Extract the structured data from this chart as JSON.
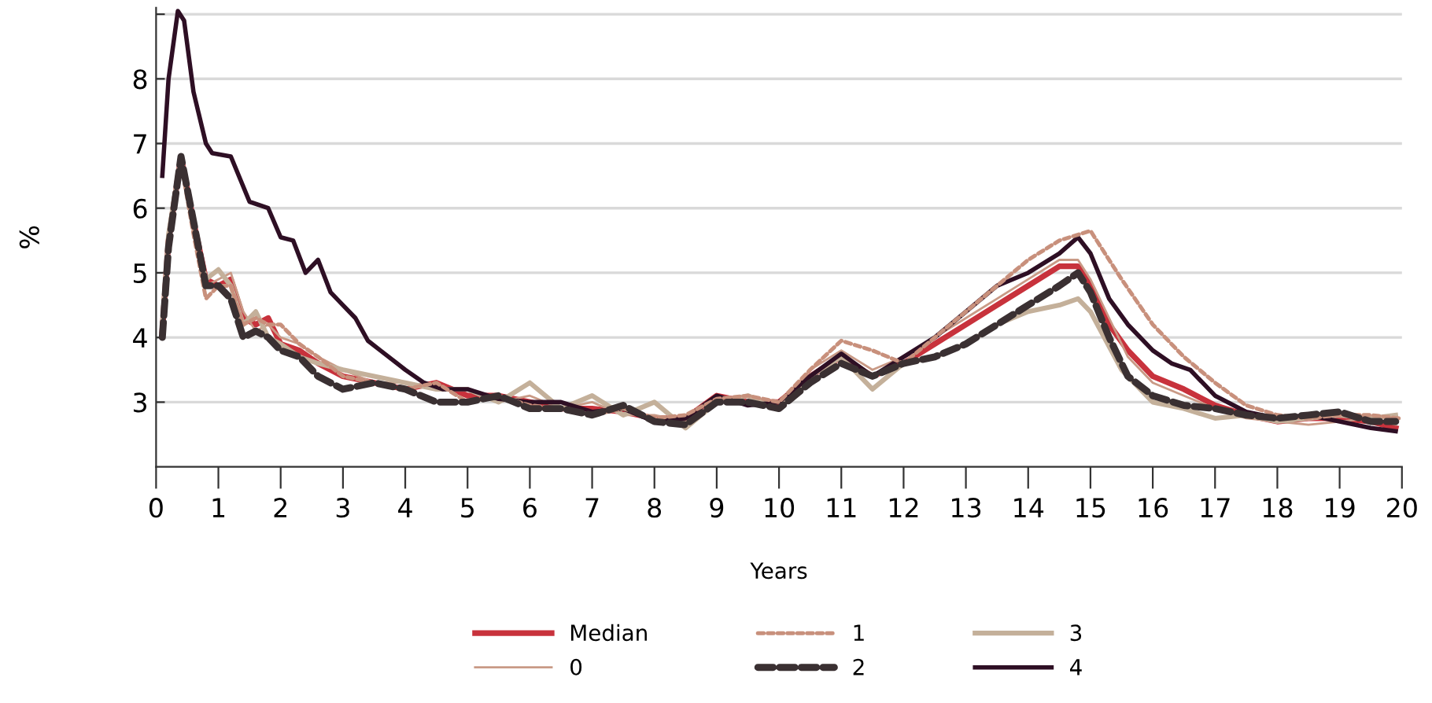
{
  "chart_data": {
    "type": "line",
    "xlabel": "Years",
    "ylabel": "%",
    "xlim": [
      0,
      20
    ],
    "xticks": [
      0,
      1,
      2,
      3,
      4,
      5,
      6,
      7,
      8,
      9,
      10,
      11,
      12,
      13,
      14,
      15,
      16,
      17,
      18,
      19,
      20
    ],
    "ylim": [
      2,
      9.1
    ],
    "yticks": [
      3,
      4,
      5,
      6,
      7,
      8,
      {
        "value": 9,
        "label": null
      }
    ],
    "grid": "y",
    "legend": "bottom",
    "marker": "none",
    "series": [
      {
        "name": "Median",
        "color": "#c8323c",
        "line_style": "solid",
        "x": [
          0.1,
          0.2,
          0.4,
          0.6,
          0.8,
          1.0,
          1.2,
          1.4,
          1.6,
          1.8,
          2.0,
          2.3,
          2.6,
          3,
          3.5,
          4,
          4.5,
          5,
          5.5,
          6,
          6.5,
          7,
          7.5,
          8,
          8.5,
          9,
          9.5,
          10,
          10.5,
          11,
          11.5,
          12,
          12.5,
          13,
          13.5,
          14,
          14.5,
          14.8,
          15,
          15.3,
          15.6,
          16,
          16.5,
          17,
          17.5,
          18,
          18.5,
          19,
          19.5,
          19.9
        ],
        "values": [
          4.1,
          5.5,
          6.8,
          5.8,
          4.9,
          4.8,
          4.9,
          4.3,
          4.2,
          4.3,
          3.9,
          3.8,
          3.6,
          3.4,
          3.3,
          3.2,
          3.3,
          3.1,
          3.1,
          3.0,
          2.9,
          2.9,
          2.85,
          2.75,
          2.75,
          3.1,
          3.0,
          3.0,
          3.4,
          3.7,
          3.4,
          3.6,
          3.9,
          4.2,
          4.5,
          4.8,
          5.1,
          5.1,
          4.8,
          4.2,
          3.8,
          3.4,
          3.2,
          2.95,
          2.8,
          2.7,
          2.75,
          2.75,
          2.7,
          2.6
        ]
      },
      {
        "name": "0",
        "color": "#c99a86",
        "line_style": "solid",
        "x": [
          0.1,
          0.2,
          0.4,
          0.6,
          0.8,
          1.0,
          1.2,
          1.4,
          1.6,
          1.8,
          2.0,
          2.3,
          2.6,
          3,
          3.5,
          4,
          4.5,
          5,
          5.5,
          6,
          6.5,
          7,
          7.5,
          8,
          8.5,
          9,
          9.5,
          10,
          10.5,
          11,
          11.5,
          12,
          12.5,
          13,
          13.5,
          14,
          14.5,
          14.8,
          15,
          15.3,
          15.6,
          16,
          16.5,
          17,
          17.5,
          18,
          18.5,
          19,
          19.5,
          19.9
        ],
        "values": [
          4.1,
          5.4,
          6.7,
          5.7,
          4.8,
          4.9,
          5.0,
          4.4,
          4.1,
          4.2,
          4.0,
          3.9,
          3.7,
          3.5,
          3.3,
          3.3,
          3.2,
          3.2,
          3.0,
          3.1,
          2.9,
          3.0,
          2.8,
          2.8,
          2.7,
          3.0,
          3.1,
          2.9,
          3.5,
          3.8,
          3.5,
          3.7,
          4.0,
          4.3,
          4.6,
          4.9,
          5.2,
          5.2,
          4.9,
          4.3,
          3.7,
          3.3,
          3.1,
          2.9,
          2.75,
          2.7,
          2.65,
          2.7,
          2.75,
          2.65
        ]
      },
      {
        "name": "1",
        "color": "#c8907c",
        "line_style": "dotted",
        "x": [
          0.1,
          0.2,
          0.4,
          0.6,
          0.8,
          1.0,
          1.2,
          1.4,
          1.6,
          1.8,
          2.0,
          2.3,
          2.6,
          3,
          3.5,
          4,
          4.5,
          5,
          5.5,
          6,
          6.5,
          7,
          7.5,
          8,
          8.5,
          9,
          9.5,
          10,
          10.5,
          11,
          11.5,
          12,
          12.5,
          13,
          13.5,
          14,
          14.5,
          15,
          15.5,
          16,
          16.5,
          17,
          17.5,
          18,
          18.5,
          19,
          19.5,
          19.95
        ],
        "values": [
          4.0,
          5.5,
          6.7,
          5.6,
          4.6,
          4.8,
          4.8,
          4.2,
          4.3,
          4.2,
          4.2,
          3.9,
          3.7,
          3.4,
          3.3,
          3.2,
          3.3,
          3.0,
          3.1,
          2.95,
          2.9,
          2.8,
          2.9,
          2.75,
          2.8,
          3.05,
          3.1,
          3.0,
          3.5,
          3.95,
          3.8,
          3.6,
          4.0,
          4.4,
          4.8,
          5.2,
          5.5,
          5.65,
          4.9,
          4.2,
          3.7,
          3.3,
          2.95,
          2.8,
          2.75,
          2.8,
          2.8,
          2.75
        ]
      },
      {
        "name": "2",
        "color": "#3a3032",
        "line_style": "dashed",
        "x": [
          0.1,
          0.2,
          0.4,
          0.6,
          0.8,
          1.0,
          1.2,
          1.4,
          1.6,
          1.8,
          2.0,
          2.3,
          2.6,
          3,
          3.5,
          4,
          4.5,
          5,
          5.5,
          6,
          6.5,
          7,
          7.5,
          8,
          8.5,
          9,
          9.5,
          10,
          10.5,
          11,
          11.5,
          12,
          12.5,
          13,
          13.5,
          14,
          14.5,
          14.8,
          15,
          15.3,
          15.6,
          16,
          16.5,
          17,
          17.5,
          18,
          18.5,
          19,
          19.5,
          19.9
        ],
        "values": [
          4.0,
          5.4,
          6.8,
          5.8,
          4.8,
          4.8,
          4.6,
          4.0,
          4.1,
          4.0,
          3.8,
          3.7,
          3.4,
          3.2,
          3.3,
          3.2,
          3.0,
          3.0,
          3.1,
          2.9,
          2.9,
          2.8,
          2.95,
          2.7,
          2.65,
          3.0,
          3.0,
          2.9,
          3.3,
          3.6,
          3.4,
          3.6,
          3.7,
          3.9,
          4.2,
          4.5,
          4.8,
          5.0,
          4.7,
          4.0,
          3.4,
          3.1,
          2.95,
          2.9,
          2.8,
          2.75,
          2.8,
          2.85,
          2.7,
          2.7
        ]
      },
      {
        "name": "3",
        "color": "#c4b09a",
        "line_style": "solid",
        "x": [
          0.1,
          0.2,
          0.4,
          0.6,
          0.8,
          1.0,
          1.2,
          1.4,
          1.6,
          1.8,
          2.0,
          2.3,
          2.6,
          3,
          3.5,
          4,
          4.5,
          5,
          5.5,
          6,
          6.5,
          7,
          7.5,
          8,
          8.5,
          9,
          9.5,
          10,
          10.5,
          11,
          11.5,
          12,
          12.5,
          13,
          13.5,
          14,
          14.5,
          14.8,
          15,
          15.5,
          16,
          16.5,
          17,
          17.5,
          18,
          18.5,
          19,
          19.5,
          19.9
        ],
        "values": [
          4.2,
          5.6,
          6.8,
          5.7,
          4.9,
          5.05,
          4.8,
          4.2,
          4.4,
          4.0,
          3.9,
          3.7,
          3.6,
          3.5,
          3.4,
          3.3,
          3.2,
          3.2,
          3.0,
          3.3,
          2.9,
          3.1,
          2.8,
          3.0,
          2.6,
          3.0,
          3.1,
          2.9,
          3.4,
          3.7,
          3.2,
          3.6,
          3.7,
          3.9,
          4.2,
          4.4,
          4.5,
          4.6,
          4.4,
          3.5,
          3.0,
          2.9,
          2.75,
          2.8,
          2.7,
          2.75,
          2.8,
          2.75,
          2.8
        ]
      },
      {
        "name": "4",
        "color": "#2e0f24",
        "line_style": "solid",
        "x": [
          0.1,
          0.2,
          0.35,
          0.45,
          0.6,
          0.8,
          0.9,
          1.2,
          1.5,
          1.8,
          2.0,
          2.2,
          2.4,
          2.6,
          2.8,
          3.0,
          3.2,
          3.4,
          3.6,
          4.0,
          4.3,
          4.6,
          5,
          5.5,
          6,
          6.5,
          7,
          7.5,
          8,
          8.5,
          9,
          9.5,
          10,
          10.5,
          11,
          11.5,
          12,
          12.5,
          13,
          13.5,
          14,
          14.5,
          14.8,
          15,
          15.3,
          15.6,
          16,
          16.3,
          16.6,
          17,
          17.5,
          18,
          18.5,
          19,
          19.5,
          19.9
        ],
        "values": [
          6.5,
          8.0,
          9.05,
          8.9,
          7.8,
          7.0,
          6.85,
          6.8,
          6.1,
          6.0,
          5.55,
          5.5,
          5.0,
          5.2,
          4.7,
          4.5,
          4.3,
          3.95,
          3.8,
          3.5,
          3.3,
          3.2,
          3.2,
          3.05,
          3.0,
          3.0,
          2.85,
          2.9,
          2.7,
          2.75,
          3.1,
          2.95,
          3.0,
          3.4,
          3.75,
          3.4,
          3.7,
          4.0,
          4.4,
          4.8,
          5.0,
          5.3,
          5.55,
          5.3,
          4.6,
          4.2,
          3.8,
          3.6,
          3.5,
          3.1,
          2.85,
          2.75,
          2.8,
          2.7,
          2.6,
          2.55
        ]
      }
    ]
  }
}
